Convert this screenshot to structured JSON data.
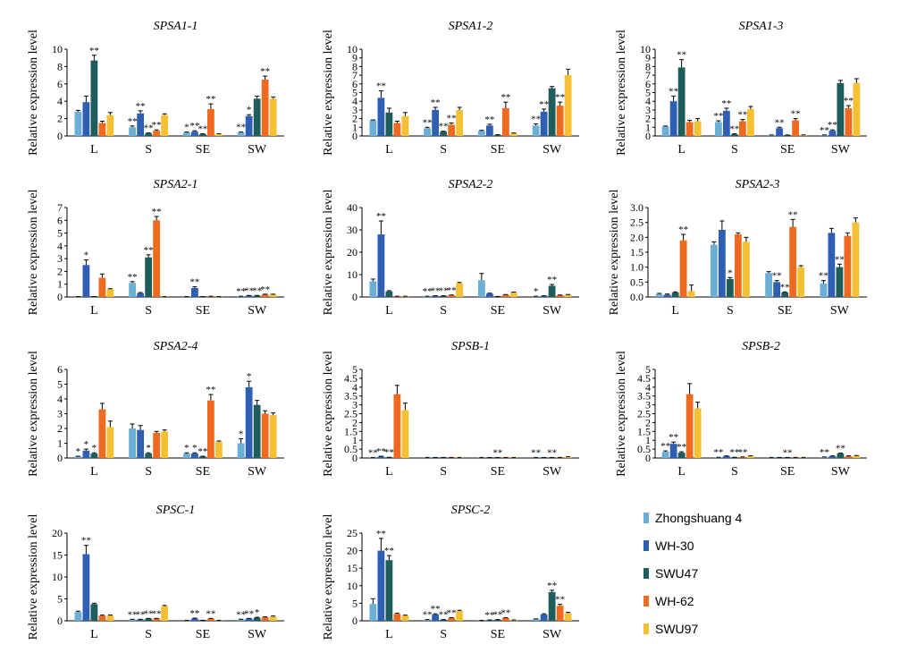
{
  "ylabel": "Relative expression level",
  "series": [
    {
      "name": "Zhongshuang 4",
      "color": "#6baed6"
    },
    {
      "name": "WH-30",
      "color": "#2f5fb3"
    },
    {
      "name": "SWU47",
      "color": "#1f5c5c"
    },
    {
      "name": "WH-62",
      "color": "#ee6a1f"
    },
    {
      "name": "SWU97",
      "color": "#f5c033"
    }
  ],
  "chart_data": [
    {
      "type": "bar",
      "title": "SPSA1-1",
      "categories": [
        "L",
        "S",
        "SE",
        "SW"
      ],
      "ylim": [
        0,
        10
      ],
      "yticks": [
        0,
        2,
        4,
        6,
        8,
        10
      ],
      "ylabel": "Relative expression level",
      "values": [
        [
          2.8,
          3.9,
          8.7,
          1.5,
          2.4
        ],
        [
          1.0,
          2.6,
          0.3,
          0.6,
          2.4
        ],
        [
          0.4,
          0.5,
          0.2,
          3.1,
          0.2
        ],
        [
          0.4,
          2.3,
          4.3,
          6.5,
          4.3
        ]
      ],
      "errors": [
        [
          0.15,
          0.7,
          0.6,
          0.2,
          0.3
        ],
        [
          0.15,
          0.3,
          0.05,
          0.1,
          0.15
        ],
        [
          0.05,
          0.1,
          0.05,
          0.6,
          0.05
        ],
        [
          0.05,
          0.15,
          0.3,
          0.4,
          0.2
        ]
      ],
      "sig": [
        [
          "",
          "",
          "**",
          "",
          ""
        ],
        [
          "**",
          "**",
          "**",
          "**",
          ""
        ],
        [
          "*",
          "**",
          "**",
          "**",
          ""
        ],
        [
          "**",
          "*",
          "",
          "**",
          ""
        ]
      ]
    },
    {
      "type": "bar",
      "title": "SPSA1-2",
      "categories": [
        "L",
        "S",
        "SE",
        "SW"
      ],
      "ylim": [
        0,
        10
      ],
      "yticks": [
        0,
        1,
        2,
        3,
        4,
        5,
        6,
        7,
        8,
        9,
        10
      ],
      "ylabel": "Relative expression level",
      "values": [
        [
          1.8,
          4.4,
          2.7,
          1.5,
          2.3
        ],
        [
          0.9,
          3.0,
          0.5,
          1.3,
          3.0
        ],
        [
          0.6,
          1.2,
          0.1,
          3.2,
          0.3
        ],
        [
          1.2,
          2.8,
          5.5,
          3.5,
          7.0
        ]
      ],
      "errors": [
        [
          0.05,
          0.8,
          0.5,
          0.2,
          0.4
        ],
        [
          0.1,
          0.3,
          0.05,
          0.2,
          0.3
        ],
        [
          0.05,
          0.15,
          0.05,
          0.7,
          0.05
        ],
        [
          0.2,
          0.3,
          0.2,
          0.4,
          0.7
        ]
      ],
      "sig": [
        [
          "",
          "**",
          "",
          "",
          ""
        ],
        [
          "**",
          "**",
          "**",
          "**",
          ""
        ],
        [
          "",
          "**",
          "",
          "**",
          ""
        ],
        [
          "**",
          "**",
          "",
          "**",
          ""
        ]
      ]
    },
    {
      "type": "bar",
      "title": "SPSA1-3",
      "categories": [
        "L",
        "S",
        "SE",
        "SW"
      ],
      "ylim": [
        0,
        10
      ],
      "yticks": [
        0,
        1,
        2,
        3,
        4,
        5,
        6,
        7,
        8,
        9,
        10
      ],
      "ylabel": "Relative expression level",
      "values": [
        [
          1.1,
          4.0,
          7.9,
          1.6,
          1.7
        ],
        [
          1.6,
          2.9,
          0.2,
          1.7,
          3.1
        ],
        [
          0.1,
          0.9,
          0.1,
          1.8,
          0.1
        ],
        [
          0.1,
          0.6,
          6.1,
          3.2,
          6.1
        ]
      ],
      "errors": [
        [
          0.05,
          0.6,
          0.9,
          0.2,
          0.3
        ],
        [
          0.15,
          0.3,
          0.05,
          0.2,
          0.3
        ],
        [
          0.02,
          0.1,
          0.02,
          0.2,
          0.02
        ],
        [
          0.02,
          0.1,
          0.3,
          0.3,
          0.5
        ]
      ],
      "sig": [
        [
          "",
          "**",
          "**",
          "",
          ""
        ],
        [
          "**",
          "**",
          "**",
          "**",
          ""
        ],
        [
          "",
          "**",
          "",
          "**",
          ""
        ],
        [
          "**",
          "**",
          "",
          "**",
          ""
        ]
      ]
    },
    {
      "type": "bar",
      "title": "SPSA2-1",
      "categories": [
        "L",
        "S",
        "SE",
        "SW"
      ],
      "ylim": [
        0,
        7
      ],
      "yticks": [
        0,
        1,
        2,
        3,
        4,
        5,
        6,
        7
      ],
      "ylabel": "Relative expression level",
      "values": [
        [
          0.02,
          2.5,
          0.02,
          1.5,
          0.6
        ],
        [
          1.1,
          0.3,
          3.1,
          6.0,
          0.02
        ],
        [
          0.02,
          0.7,
          0.02,
          0.05,
          0.02
        ],
        [
          0.05,
          0.1,
          0.1,
          0.2,
          0.2
        ]
      ],
      "errors": [
        [
          0.01,
          0.4,
          0.01,
          0.3,
          0.05
        ],
        [
          0.1,
          0.05,
          0.2,
          0.3,
          0.01
        ],
        [
          0.01,
          0.1,
          0.01,
          0.01,
          0.01
        ],
        [
          0.01,
          0.02,
          0.02,
          0.02,
          0.02
        ]
      ],
      "sig": [
        [
          "",
          "*",
          "",
          "",
          ""
        ],
        [
          "**",
          "",
          "**",
          "**",
          ""
        ],
        [
          "",
          "**",
          "",
          "",
          ""
        ],
        [
          "**",
          "**",
          "**",
          "**",
          ""
        ]
      ]
    },
    {
      "type": "bar",
      "title": "SPSA2-2",
      "categories": [
        "L",
        "S",
        "SE",
        "SW"
      ],
      "ylim": [
        0,
        40
      ],
      "yticks": [
        0,
        10,
        20,
        30,
        40
      ],
      "ylabel": "Relative expression level",
      "values": [
        [
          7.0,
          28.0,
          2.5,
          0.3,
          0.3
        ],
        [
          0.3,
          0.5,
          0.5,
          0.8,
          6.2
        ],
        [
          7.5,
          1.5,
          0.2,
          1.0,
          2.0
        ],
        [
          0.3,
          0.5,
          5.0,
          0.8,
          1.0
        ]
      ],
      "errors": [
        [
          1.0,
          6.0,
          0.3,
          0.05,
          0.05
        ],
        [
          0.05,
          0.05,
          0.05,
          0.1,
          0.3
        ],
        [
          3.0,
          0.2,
          0.05,
          0.1,
          0.2
        ],
        [
          0.05,
          0.05,
          0.6,
          0.1,
          0.1
        ]
      ],
      "sig": [
        [
          "",
          "**",
          "",
          "",
          ""
        ],
        [
          "**",
          "**",
          "**",
          "**",
          ""
        ],
        [
          "",
          "",
          "",
          "",
          ""
        ],
        [
          "*",
          "",
          "**",
          "",
          ""
        ]
      ]
    },
    {
      "type": "bar",
      "title": "SPSA2-3",
      "categories": [
        "L",
        "S",
        "SE",
        "SW"
      ],
      "ylim": [
        0,
        3
      ],
      "yticks": [
        0,
        0.5,
        1.0,
        1.5,
        2.0,
        2.5,
        3.0
      ],
      "ylabel": "Relative expression level",
      "values": [
        [
          0.1,
          0.08,
          0.15,
          1.9,
          0.2
        ],
        [
          1.75,
          2.25,
          0.6,
          2.1,
          1.85
        ],
        [
          0.8,
          0.5,
          0.15,
          2.35,
          1.0
        ],
        [
          0.45,
          2.15,
          1.0,
          2.05,
          2.5
        ]
      ],
      "errors": [
        [
          0.02,
          0.02,
          0.02,
          0.2,
          0.2
        ],
        [
          0.1,
          0.3,
          0.05,
          0.05,
          0.15
        ],
        [
          0.05,
          0.05,
          0.02,
          0.25,
          0.05
        ],
        [
          0.1,
          0.15,
          0.1,
          0.1,
          0.15
        ]
      ],
      "sig": [
        [
          "",
          "",
          "",
          "**",
          ""
        ],
        [
          "",
          "",
          "*",
          "",
          ""
        ],
        [
          "",
          "**",
          "**",
          "**",
          ""
        ],
        [
          "**",
          "",
          "**",
          "",
          ""
        ]
      ]
    },
    {
      "type": "bar",
      "title": "SPSA2-4",
      "categories": [
        "L",
        "S",
        "SE",
        "SW"
      ],
      "ylim": [
        0,
        6
      ],
      "yticks": [
        0,
        1,
        2,
        3,
        4,
        5,
        6
      ],
      "ylabel": "Relative expression level",
      "values": [
        [
          0.1,
          0.5,
          0.3,
          3.3,
          2.1
        ],
        [
          2.0,
          1.9,
          0.3,
          1.7,
          1.8
        ],
        [
          0.3,
          0.3,
          0.1,
          3.9,
          1.1
        ],
        [
          1.0,
          4.8,
          3.6,
          3.0,
          2.9
        ]
      ],
      "errors": [
        [
          0.02,
          0.1,
          0.05,
          0.4,
          0.4
        ],
        [
          0.3,
          0.3,
          0.05,
          0.1,
          0.1
        ],
        [
          0.05,
          0.05,
          0.02,
          0.4,
          0.05
        ],
        [
          0.3,
          0.4,
          0.3,
          0.2,
          0.15
        ]
      ],
      "sig": [
        [
          "*",
          "*",
          "*",
          "",
          ""
        ],
        [
          "",
          "",
          "*",
          "",
          ""
        ],
        [
          "*",
          "*",
          "**",
          "**",
          ""
        ],
        [
          "*",
          "*",
          "",
          "",
          ""
        ]
      ]
    },
    {
      "type": "bar",
      "title": "SPSB-1",
      "categories": [
        "L",
        "S",
        "SE",
        "SW"
      ],
      "ylim": [
        0,
        5
      ],
      "yticks": [
        0,
        0.5,
        1,
        1.5,
        2,
        2.5,
        3,
        3.5,
        4,
        4.5,
        5
      ],
      "ylabel": "Relative expression level",
      "values": [
        [
          0.02,
          0.08,
          0.03,
          3.6,
          2.7
        ],
        [
          0.02,
          0.02,
          0.02,
          0.02,
          0.02
        ],
        [
          0.02,
          0.02,
          0.02,
          0.02,
          0.02
        ],
        [
          0.02,
          0.02,
          0.02,
          0.02,
          0.05
        ]
      ],
      "errors": [
        [
          0.01,
          0.02,
          0.01,
          0.5,
          0.4
        ],
        [
          0.01,
          0.01,
          0.01,
          0.01,
          0.01
        ],
        [
          0.01,
          0.01,
          0.01,
          0.01,
          0.01
        ],
        [
          0.01,
          0.01,
          0.01,
          0.01,
          0.02
        ]
      ],
      "sig": [
        [
          "**",
          "**",
          "**",
          "",
          ""
        ],
        [
          "",
          "",
          "",
          "",
          ""
        ],
        [
          "",
          "",
          "**",
          "",
          ""
        ],
        [
          "**",
          "",
          "**",
          "",
          ""
        ]
      ]
    },
    {
      "type": "bar",
      "title": "SPSB-2",
      "categories": [
        "L",
        "S",
        "SE",
        "SW"
      ],
      "ylim": [
        0,
        5
      ],
      "yticks": [
        0,
        0.5,
        1,
        1.5,
        2,
        2.5,
        3,
        3.5,
        4,
        4.5,
        5
      ],
      "ylabel": "Relative expression level",
      "values": [
        [
          0.35,
          0.8,
          0.3,
          3.6,
          2.8
        ],
        [
          0.03,
          0.1,
          0.03,
          0.05,
          0.1
        ],
        [
          0.02,
          0.02,
          0.02,
          0.02,
          0.02
        ],
        [
          0.05,
          0.1,
          0.25,
          0.1,
          0.12
        ]
      ],
      "errors": [
        [
          0.05,
          0.1,
          0.05,
          0.6,
          0.35
        ],
        [
          0.01,
          0.02,
          0.01,
          0.01,
          0.02
        ],
        [
          0.01,
          0.01,
          0.01,
          0.01,
          0.01
        ],
        [
          0.01,
          0.02,
          0.03,
          0.02,
          0.02
        ]
      ],
      "sig": [
        [
          "**",
          "**",
          "**",
          "",
          ""
        ],
        [
          "**",
          "",
          "**",
          "**",
          ""
        ],
        [
          "",
          "",
          "**",
          "",
          ""
        ],
        [
          "**",
          "",
          "**",
          "",
          ""
        ]
      ]
    },
    {
      "type": "bar",
      "title": "SPSC-1",
      "categories": [
        "L",
        "S",
        "SE",
        "SW"
      ],
      "ylim": [
        0,
        20
      ],
      "yticks": [
        0,
        5,
        10,
        15,
        20
      ],
      "ylabel": "Relative expression level",
      "values": [
        [
          2.0,
          15.2,
          3.8,
          1.2,
          1.2
        ],
        [
          0.3,
          0.3,
          0.5,
          0.5,
          3.3
        ],
        [
          0.1,
          0.5,
          0.1,
          0.5,
          0.1
        ],
        [
          0.3,
          0.5,
          0.7,
          0.8,
          1.0
        ]
      ],
      "errors": [
        [
          0.2,
          2.0,
          0.2,
          0.1,
          0.1
        ],
        [
          0.05,
          0.05,
          0.05,
          0.05,
          0.2
        ],
        [
          0.02,
          0.1,
          0.02,
          0.05,
          0.02
        ],
        [
          0.05,
          0.05,
          0.1,
          0.1,
          0.1
        ]
      ],
      "sig": [
        [
          "",
          "**",
          "",
          "",
          ""
        ],
        [
          "**",
          "**",
          "**",
          "**",
          ""
        ],
        [
          "",
          "**",
          "",
          "**",
          ""
        ],
        [
          "**",
          "**",
          "*",
          "",
          ""
        ]
      ]
    },
    {
      "type": "bar",
      "title": "SPSC-2",
      "categories": [
        "L",
        "S",
        "SE",
        "SW"
      ],
      "ylim": [
        0,
        25
      ],
      "yticks": [
        0,
        5,
        10,
        15,
        20,
        25
      ],
      "ylabel": "Relative expression level",
      "values": [
        [
          4.8,
          20.0,
          17.3,
          2.0,
          1.5
        ],
        [
          0.3,
          1.8,
          0.3,
          0.8,
          2.8
        ],
        [
          0.1,
          0.2,
          0.3,
          0.8,
          0.2
        ],
        [
          0.5,
          1.8,
          8.2,
          4.3,
          2.2
        ]
      ],
      "errors": [
        [
          1.5,
          3.5,
          1.3,
          0.2,
          0.1
        ],
        [
          0.05,
          0.2,
          0.05,
          0.1,
          0.2
        ],
        [
          0.02,
          0.05,
          0.05,
          0.1,
          0.05
        ],
        [
          0.05,
          0.2,
          0.5,
          0.4,
          0.2
        ]
      ],
      "sig": [
        [
          "",
          "**",
          "**",
          "",
          ""
        ],
        [
          "**",
          "**",
          "**",
          "**",
          ""
        ],
        [
          "",
          "**",
          "**",
          "**",
          ""
        ],
        [
          "",
          "",
          "**",
          "**",
          ""
        ]
      ]
    }
  ]
}
